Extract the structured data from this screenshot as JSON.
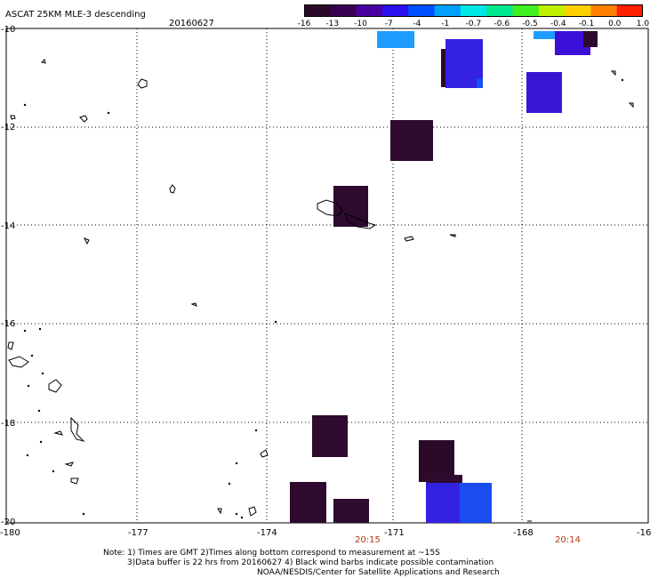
{
  "header": {
    "title": "ASCAT 25KM MLE-3 descending",
    "date": "20160627"
  },
  "colorbar": {
    "labels": [
      "-16",
      "-13",
      "-10",
      "-7",
      "-4",
      "-1",
      "-0.7",
      "-0.6",
      "-0.5",
      "-0.4",
      "-0.1",
      "0.0",
      "1.0"
    ],
    "colors": [
      "#2a0a28",
      "#3a0050",
      "#4a00a0",
      "#2a10f0",
      "#0050ff",
      "#00a0ff",
      "#00e8e8",
      "#00e890",
      "#40f020",
      "#c0f000",
      "#ffd000",
      "#ff8000",
      "#ff2000"
    ]
  },
  "axes": {
    "lon_labels": [
      "-180",
      "-177",
      "-174",
      "-171",
      "-168",
      "-16"
    ],
    "lat_labels": [
      "-10",
      "-12",
      "-14",
      "-16",
      "-18",
      "-20"
    ]
  },
  "times": [
    "20:15",
    "20:14"
  ],
  "notes": {
    "line1": "Note: 1) Times are GMT 2)Times along bottom correspond to measurement at ~15S",
    "line2": "3)Data buffer is 22 hrs from 20160627 4) Black wind barbs indicate possible contamination",
    "line3": "NOAA/NESDIS/Center for Satellite Applications and Research"
  },
  "colors": {
    "dark_purple": "#2e0a2e",
    "blue": "#3322e0",
    "bright_blue": "#1a4cf0",
    "cyan": "#1ea0ff",
    "grid": "#000000",
    "time_text": "#b03a1a"
  }
}
